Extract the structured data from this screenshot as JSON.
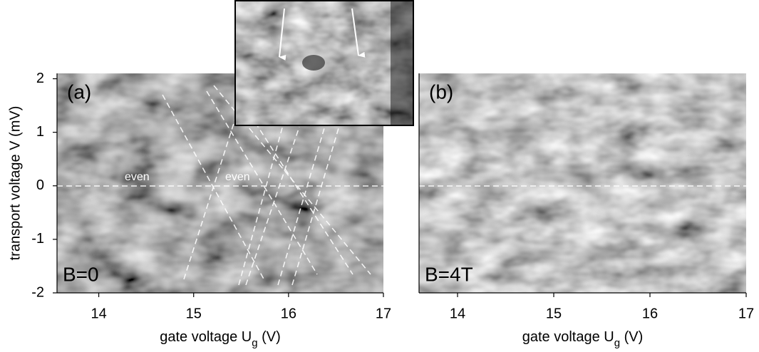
{
  "chart_data": [
    {
      "type": "heatmap",
      "panel_label": "(a)",
      "annotation": "B=0",
      "notes": [
        "even",
        "even"
      ],
      "xlabel": {
        "main": "gate voltage U",
        "sub": "g",
        "unit": " (V)"
      },
      "ylabel": "transport voltage V (mV)",
      "xlim": [
        13.56,
        17
      ],
      "xticks": [
        14,
        15,
        16,
        17
      ],
      "ylim": [
        -2,
        2.1
      ],
      "yticks": [
        -2,
        -1,
        0,
        1,
        2
      ]
    },
    {
      "type": "heatmap",
      "panel_label": "(b)",
      "annotation": "B=4T",
      "xlabel": {
        "main": "gate voltage U",
        "sub": "g",
        "unit": " (V)"
      },
      "xlim": [
        13.6,
        17
      ],
      "xticks": [
        14,
        15,
        16,
        17
      ]
    }
  ]
}
